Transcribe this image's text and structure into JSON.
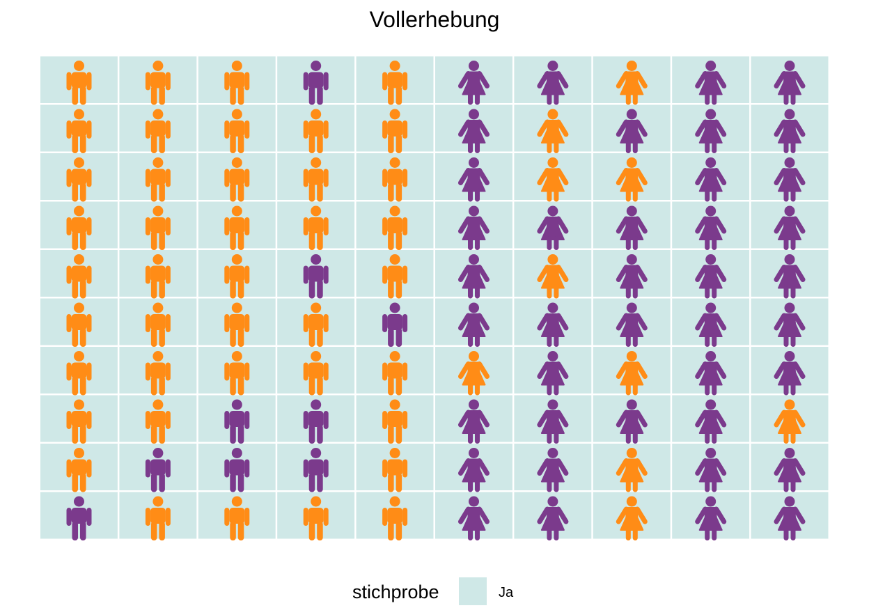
{
  "chart_data": {
    "type": "pictogram",
    "title": "Vollerhebung",
    "rows": 10,
    "cols": 10,
    "cell_fill": "#cfe8e7",
    "colors": {
      "orange": "#ff8c16",
      "purple": "#7b3a8c"
    },
    "legend": {
      "title": "stichprobe",
      "entries": [
        {
          "label": "Ja",
          "color": "#cfe8e7"
        }
      ],
      "position": "bottom"
    },
    "cells": [
      [
        "male-orange",
        "male-orange",
        "male-orange",
        "male-purple",
        "male-orange",
        "female-purple",
        "female-purple",
        "female-orange",
        "female-purple",
        "female-purple"
      ],
      [
        "male-orange",
        "male-orange",
        "male-orange",
        "male-orange",
        "male-orange",
        "female-purple",
        "female-orange",
        "female-purple",
        "female-purple",
        "female-purple"
      ],
      [
        "male-orange",
        "male-orange",
        "male-orange",
        "male-orange",
        "male-orange",
        "female-purple",
        "female-orange",
        "female-orange",
        "female-purple",
        "female-purple"
      ],
      [
        "male-orange",
        "male-orange",
        "male-orange",
        "male-orange",
        "male-orange",
        "female-purple",
        "female-purple",
        "female-purple",
        "female-purple",
        "female-purple"
      ],
      [
        "male-orange",
        "male-orange",
        "male-orange",
        "male-purple",
        "male-orange",
        "female-purple",
        "female-orange",
        "female-purple",
        "female-purple",
        "female-purple"
      ],
      [
        "male-orange",
        "male-orange",
        "male-orange",
        "male-orange",
        "male-purple",
        "female-purple",
        "female-purple",
        "female-purple",
        "female-purple",
        "female-purple"
      ],
      [
        "male-orange",
        "male-orange",
        "male-orange",
        "male-orange",
        "male-orange",
        "female-orange",
        "female-purple",
        "female-orange",
        "female-purple",
        "female-purple"
      ],
      [
        "male-orange",
        "male-orange",
        "male-purple",
        "male-purple",
        "male-orange",
        "female-purple",
        "female-purple",
        "female-purple",
        "female-purple",
        "female-orange"
      ],
      [
        "male-orange",
        "male-purple",
        "male-purple",
        "male-purple",
        "male-orange",
        "female-purple",
        "female-purple",
        "female-orange",
        "female-purple",
        "female-purple"
      ],
      [
        "male-purple",
        "male-orange",
        "male-orange",
        "male-orange",
        "male-orange",
        "female-purple",
        "female-purple",
        "female-orange",
        "female-purple",
        "female-purple"
      ]
    ]
  }
}
